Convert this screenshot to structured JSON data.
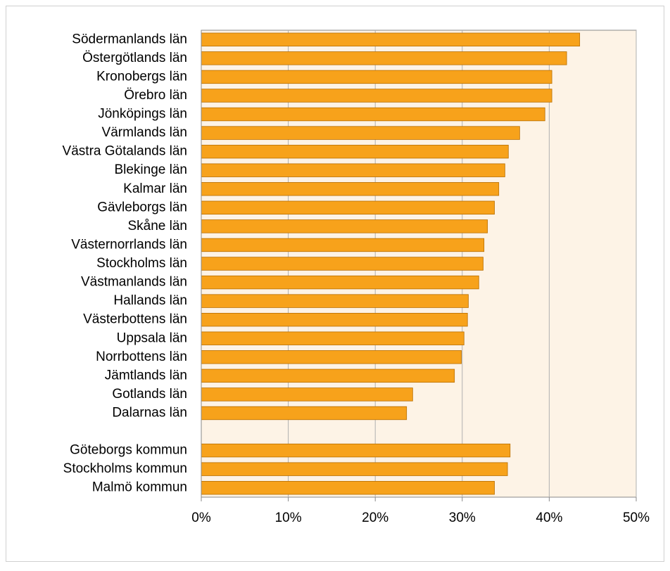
{
  "chart_data": {
    "type": "bar",
    "orientation": "horizontal",
    "categories": [
      "Södermanlands län",
      "Östergötlands län",
      "Kronobergs län",
      "Örebro län",
      "Jönköpings län",
      "Värmlands län",
      "Västra Götalands län",
      "Blekinge län",
      "Kalmar län",
      "Gävleborgs län",
      "Skåne län",
      "Västernorrlands län",
      "Stockholms län",
      "Västmanlands län",
      "Hallands län",
      "Västerbottens län",
      "Uppsala län",
      "Norrbottens län",
      "Jämtlands län",
      "Gotlands län",
      "Dalarnas län",
      null,
      "Göteborgs kommun",
      "Stockholms kommun",
      "Malmö kommun"
    ],
    "values": [
      43.5,
      42.0,
      40.3,
      40.3,
      39.5,
      36.6,
      35.3,
      34.9,
      34.2,
      33.7,
      32.9,
      32.5,
      32.4,
      31.9,
      30.7,
      30.6,
      30.2,
      29.9,
      29.1,
      24.3,
      23.6,
      null,
      35.5,
      35.2,
      33.7
    ],
    "color": "#f7a21b",
    "plot_background": "#fdf3e6",
    "xlim": [
      0,
      50
    ],
    "xticks": [
      {
        "value": 0,
        "label": "0%"
      },
      {
        "value": 10,
        "label": "10%"
      },
      {
        "value": 20,
        "label": "20%"
      },
      {
        "value": 30,
        "label": "30%"
      },
      {
        "value": 40,
        "label": "40%"
      },
      {
        "value": 50,
        "label": "50%"
      }
    ],
    "grid": true
  }
}
